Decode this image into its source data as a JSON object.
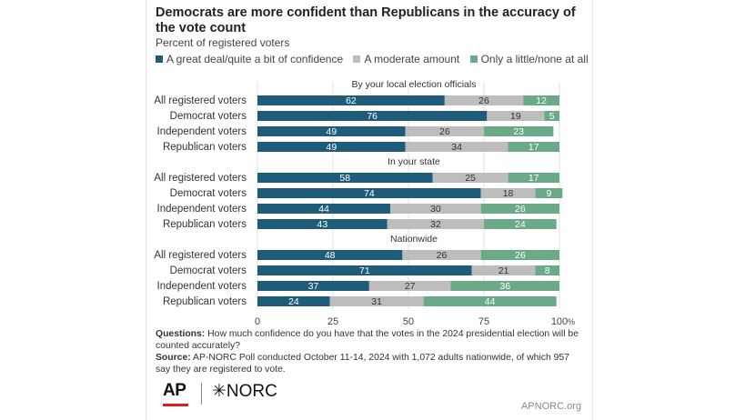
{
  "title": "Democrats are more confident than Republicans in the accuracy of the vote count",
  "subtitle": "Percent of registered voters",
  "legend": [
    {
      "label": "A great deal/quite a bit of confidence",
      "color": "#1f5c7a"
    },
    {
      "label": "A moderate amount",
      "color": "#bdbdbd"
    },
    {
      "label": "Only a little/none at all",
      "color": "#6aaa88"
    }
  ],
  "chart_data": {
    "type": "bar",
    "orientation": "horizontal",
    "stacked": true,
    "xlim": [
      0,
      100
    ],
    "x_ticks": [
      "0",
      "25",
      "50",
      "75",
      "100"
    ],
    "x_unit": "%",
    "series_names": [
      "A great deal/quite a bit of confidence",
      "A moderate amount",
      "Only a little/none at all"
    ],
    "groups": [
      {
        "title": "By your local election officials",
        "rows": [
          {
            "label": "All registered voters",
            "values": [
              62,
              26,
              12
            ]
          },
          {
            "label": "Democrat voters",
            "values": [
              76,
              19,
              5
            ]
          },
          {
            "label": "Independent voters",
            "values": [
              49,
              26,
              23
            ]
          },
          {
            "label": "Republican voters",
            "values": [
              49,
              34,
              17
            ]
          }
        ]
      },
      {
        "title": "In your state",
        "rows": [
          {
            "label": "All registered voters",
            "values": [
              58,
              25,
              17
            ]
          },
          {
            "label": "Democrat voters",
            "values": [
              74,
              18,
              9
            ]
          },
          {
            "label": "Independent voters",
            "values": [
              44,
              30,
              26
            ]
          },
          {
            "label": "Republican voters",
            "values": [
              43,
              32,
              24
            ]
          }
        ]
      },
      {
        "title": "Nationwide",
        "rows": [
          {
            "label": "All registered voters",
            "values": [
              48,
              26,
              26
            ]
          },
          {
            "label": "Democrat voters",
            "values": [
              71,
              21,
              8
            ]
          },
          {
            "label": "Independent voters",
            "values": [
              37,
              27,
              36
            ]
          },
          {
            "label": "Republican voters",
            "values": [
              24,
              31,
              44
            ]
          }
        ]
      }
    ]
  },
  "notes": {
    "questions_label": "Questions:",
    "questions_text": "How much confidence do you have that the votes in the 2024 presidential election will be counted accurately?",
    "source_label": "Source:",
    "source_text": "AP-NORC Poll conducted October 11-14, 2024 with 1,072 adults nationwide, of which 957 say they are registered to vote."
  },
  "branding": {
    "ap": "AP",
    "norc": "✳NORC",
    "site": "APNORC.org"
  }
}
